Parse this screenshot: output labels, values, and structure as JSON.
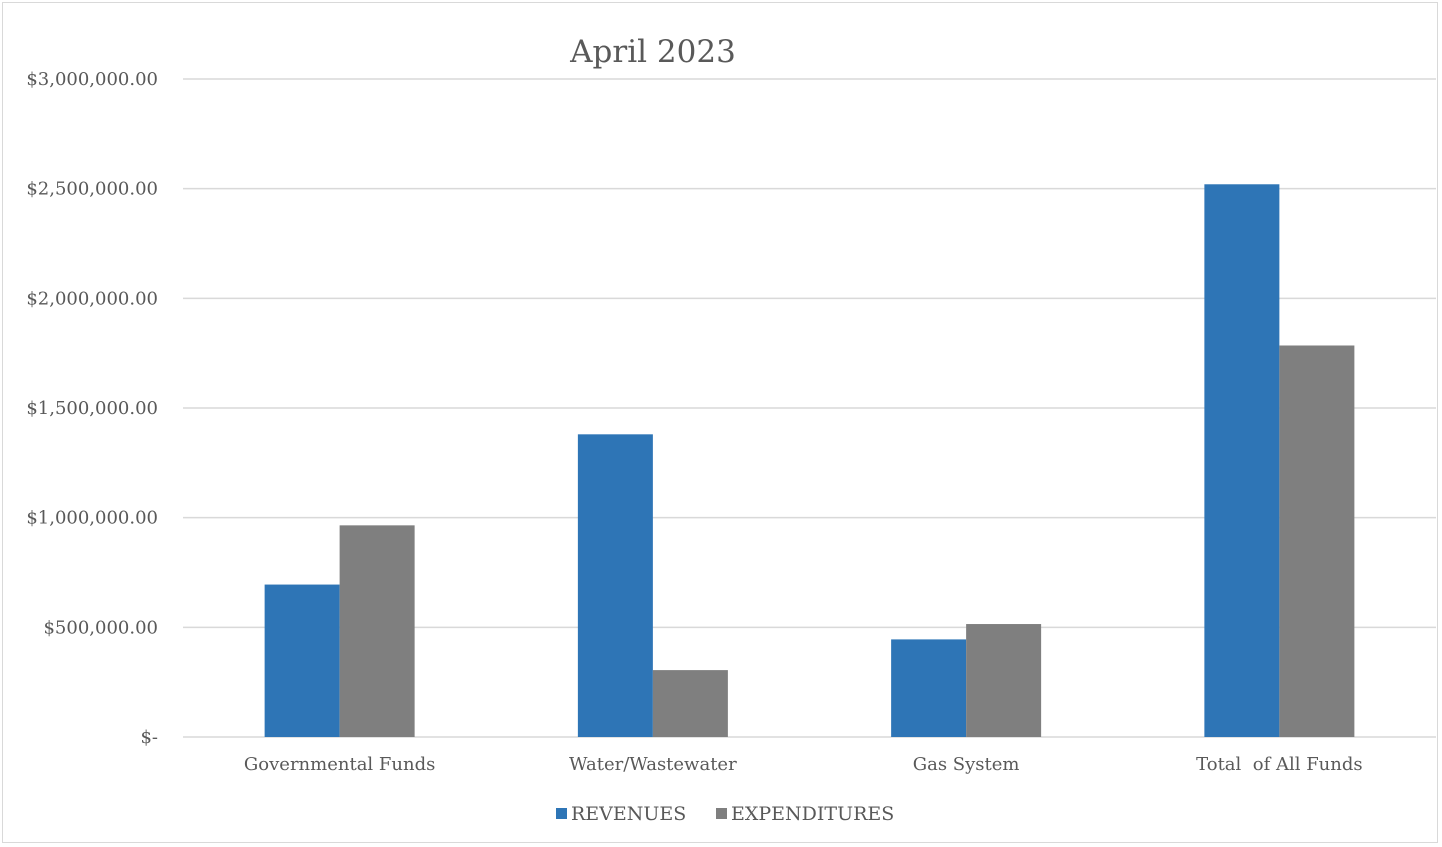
{
  "chart_data": {
    "type": "bar",
    "title": "April 2023",
    "xlabel": "",
    "ylabel": "",
    "categories": [
      "Governmental Funds",
      "Water/Wastewater",
      "Gas System",
      "Total  of All Funds"
    ],
    "series": [
      {
        "name": "REVENUES",
        "color": "#2e75b6",
        "values": [
          695000,
          1380000,
          445000,
          2520000
        ]
      },
      {
        "name": "EXPENDITURES",
        "color": "#7f7f7f",
        "values": [
          965000,
          305000,
          515000,
          1785000
        ]
      }
    ],
    "ylim": [
      0,
      3000000
    ],
    "yticks": [
      {
        "value": 0,
        "label": "$-"
      },
      {
        "value": 500000,
        "label": "$500,000.00"
      },
      {
        "value": 1000000,
        "label": "$1,000,000.00"
      },
      {
        "value": 1500000,
        "label": "$1,500,000.00"
      },
      {
        "value": 2000000,
        "label": "$2,000,000.00"
      },
      {
        "value": 2500000,
        "label": "$2,500,000.00"
      },
      {
        "value": 3000000,
        "label": "$3,000,000.00"
      }
    ],
    "grid": true,
    "legend_position": "bottom"
  }
}
